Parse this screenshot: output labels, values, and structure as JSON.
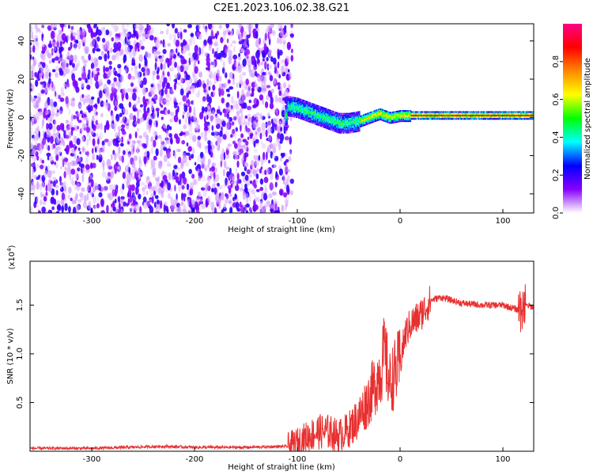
{
  "figure": {
    "title": "C2E1.2023.106.02.38.G21"
  },
  "chart_data": [
    {
      "type": "heatmap",
      "xlabel": "Height of straight line (km)",
      "ylabel": "Frequency (Hz)",
      "xlim": [
        -360,
        130
      ],
      "ylim": [
        -50,
        49
      ],
      "x_ticks": [
        -300,
        -200,
        -100,
        0,
        100
      ],
      "x_tick_labels": [
        "-300",
        "-200",
        "-100",
        "0",
        "100"
      ],
      "y_ticks": [
        -40,
        -20,
        0,
        20,
        40
      ],
      "y_tick_labels": [
        "-40",
        "-20",
        "0",
        "20",
        "40"
      ],
      "noise_region": {
        "x": [
          -360,
          -105
        ],
        "y": [
          -50,
          49
        ],
        "amplitude": [
          0.05,
          0.3
        ]
      },
      "ridge": [
        {
          "x": -110,
          "y": 6
        },
        {
          "x": -100,
          "y": 5
        },
        {
          "x": -90,
          "y": 3
        },
        {
          "x": -80,
          "y": 1
        },
        {
          "x": -70,
          "y": -1
        },
        {
          "x": -60,
          "y": -3
        },
        {
          "x": -50,
          "y": -3
        },
        {
          "x": -40,
          "y": -2
        },
        {
          "x": -30,
          "y": 0
        },
        {
          "x": -20,
          "y": 2
        },
        {
          "x": -10,
          "y": 0
        },
        {
          "x": 0,
          "y": 1
        },
        {
          "x": 20,
          "y": 1
        },
        {
          "x": 50,
          "y": 1
        },
        {
          "x": 80,
          "y": 1
        },
        {
          "x": 100,
          "y": 1
        },
        {
          "x": 130,
          "y": 1
        }
      ],
      "colorbar": {
        "label": "Normalized spectral amplitude",
        "range": [
          0,
          1
        ],
        "ticks": [
          0,
          0.2,
          0.4,
          0.6,
          0.8
        ],
        "tick_labels": [
          "0.0",
          "0.2",
          "0.4",
          "0.6",
          "0.8"
        ],
        "colors": [
          "#ffffff",
          "#8800ff",
          "#0000ff",
          "#00ffff",
          "#00ff00",
          "#ffff00",
          "#ff8800",
          "#ff0000",
          "#ff0088"
        ]
      },
      "grid": false
    },
    {
      "type": "line",
      "xlabel": "Height of straight line (km)",
      "ylabel": "SNR (10 * v/v)",
      "y_scale_label": "(x10",
      "y_scale_exp": "4",
      "y_scale_close": ")",
      "xlim": [
        -360,
        130
      ],
      "ylim": [
        0,
        1.95
      ],
      "x_ticks": [
        -300,
        -200,
        -100,
        0,
        100
      ],
      "x_tick_labels": [
        "-300",
        "-200",
        "-100",
        "0",
        "100"
      ],
      "y_ticks": [
        0.5,
        1.0,
        1.5
      ],
      "y_tick_labels": [
        "0.5",
        "1.0",
        "1.5"
      ],
      "series": [
        {
          "color": "#e83030",
          "points": [
            [
              -360,
              0.03
            ],
            [
              -300,
              0.03
            ],
            [
              -230,
              0.05
            ],
            [
              -200,
              0.04
            ],
            [
              -150,
              0.04
            ],
            [
              -110,
              0.05
            ],
            [
              -100,
              0.09
            ],
            [
              -90,
              0.15
            ],
            [
              -80,
              0.2
            ],
            [
              -70,
              0.2
            ],
            [
              -60,
              0.16
            ],
            [
              -50,
              0.22
            ],
            [
              -40,
              0.35
            ],
            [
              -30,
              0.55
            ],
            [
              -20,
              0.8
            ],
            [
              -15,
              1.0
            ],
            [
              -10,
              0.7
            ],
            [
              -5,
              0.8
            ],
            [
              0,
              0.9
            ],
            [
              5,
              1.2
            ],
            [
              10,
              1.3
            ],
            [
              20,
              1.4
            ],
            [
              30,
              1.55
            ],
            [
              40,
              1.58
            ],
            [
              60,
              1.52
            ],
            [
              80,
              1.5
            ],
            [
              100,
              1.5
            ],
            [
              115,
              1.45
            ],
            [
              120,
              1.5
            ],
            [
              130,
              1.48
            ]
          ]
        }
      ],
      "grid": false
    }
  ]
}
